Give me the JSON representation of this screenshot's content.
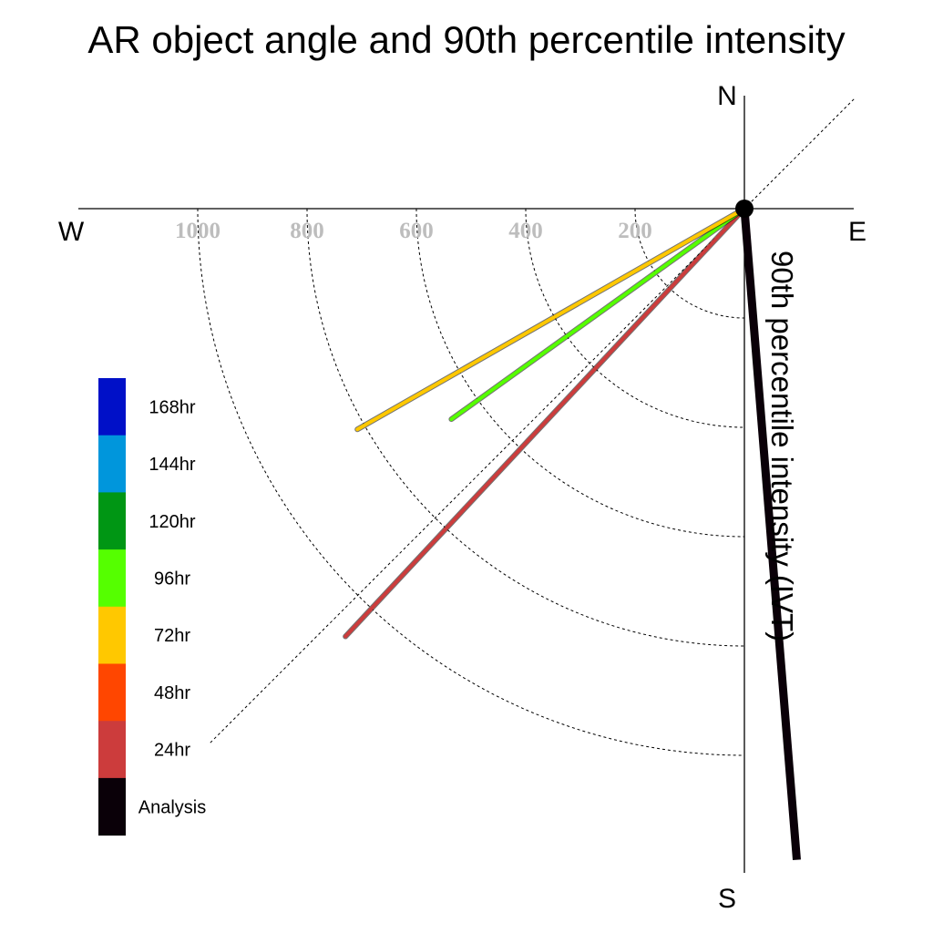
{
  "chart_data": {
    "type": "polar-line",
    "title": "AR object angle and 90th percentile intensity",
    "ylabel": "90th percentile intensity (IVT)",
    "directions": {
      "north": "N",
      "south": "S",
      "east": "E",
      "west": "W"
    },
    "radial_ticks": [
      200,
      400,
      600,
      800,
      1000
    ],
    "radial_tick_labels": [
      "200",
      "400",
      "600",
      "800",
      "1000"
    ],
    "radial_range": [
      0,
      1200
    ],
    "grid": true,
    "reference_line_angle_deg": 45,
    "legend_placement": "left",
    "legend": [
      {
        "label": "168hr",
        "color": "#0010c8"
      },
      {
        "label": "144hr",
        "color": "#0096dc"
      },
      {
        "label": "120hr",
        "color": "#009614"
      },
      {
        "label": "96hr",
        "color": "#55ff00"
      },
      {
        "label": "72hr",
        "color": "#ffc800"
      },
      {
        "label": "48hr",
        "color": "#ff4600"
      },
      {
        "label": "24hr",
        "color": "#cc3c3c"
      },
      {
        "label": "Analysis",
        "color": "#0a0008"
      }
    ],
    "series": [
      {
        "name": "Analysis",
        "color": "#0a0008",
        "angle_deg": 94.6,
        "intensity": 1195
      },
      {
        "name": "24hr",
        "color": "#cc3c3c",
        "angle_deg": 47,
        "intensity": 1070
      },
      {
        "name": "96hr",
        "color": "#55ff00",
        "angle_deg": 35.7,
        "intensity": 660
      },
      {
        "name": "72hr",
        "color": "#ffc800",
        "angle_deg": 29.7,
        "intensity": 815
      }
    ]
  }
}
